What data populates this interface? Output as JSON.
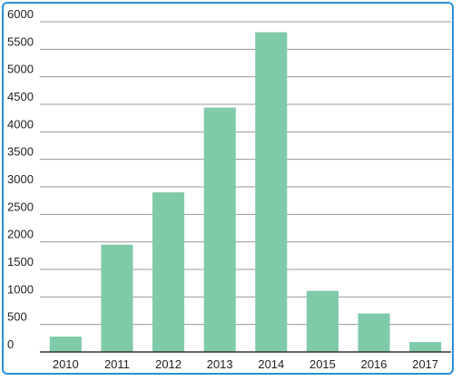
{
  "chart_data": {
    "type": "bar",
    "title": "",
    "xlabel": "",
    "ylabel": "",
    "categories": [
      "2010",
      "2011",
      "2012",
      "2013",
      "2014",
      "2015",
      "2016",
      "2017"
    ],
    "values": [
      280,
      1950,
      2900,
      4440,
      5810,
      1110,
      700,
      180
    ],
    "ylim": [
      0,
      6000
    ],
    "yticks": [
      0,
      500,
      1000,
      1500,
      2000,
      2500,
      3000,
      3500,
      4000,
      4500,
      5000,
      5500,
      6000
    ],
    "grid": true,
    "legend": "none",
    "bar_color": "#7fcaa9",
    "frame_color": "#2b8fd6"
  }
}
